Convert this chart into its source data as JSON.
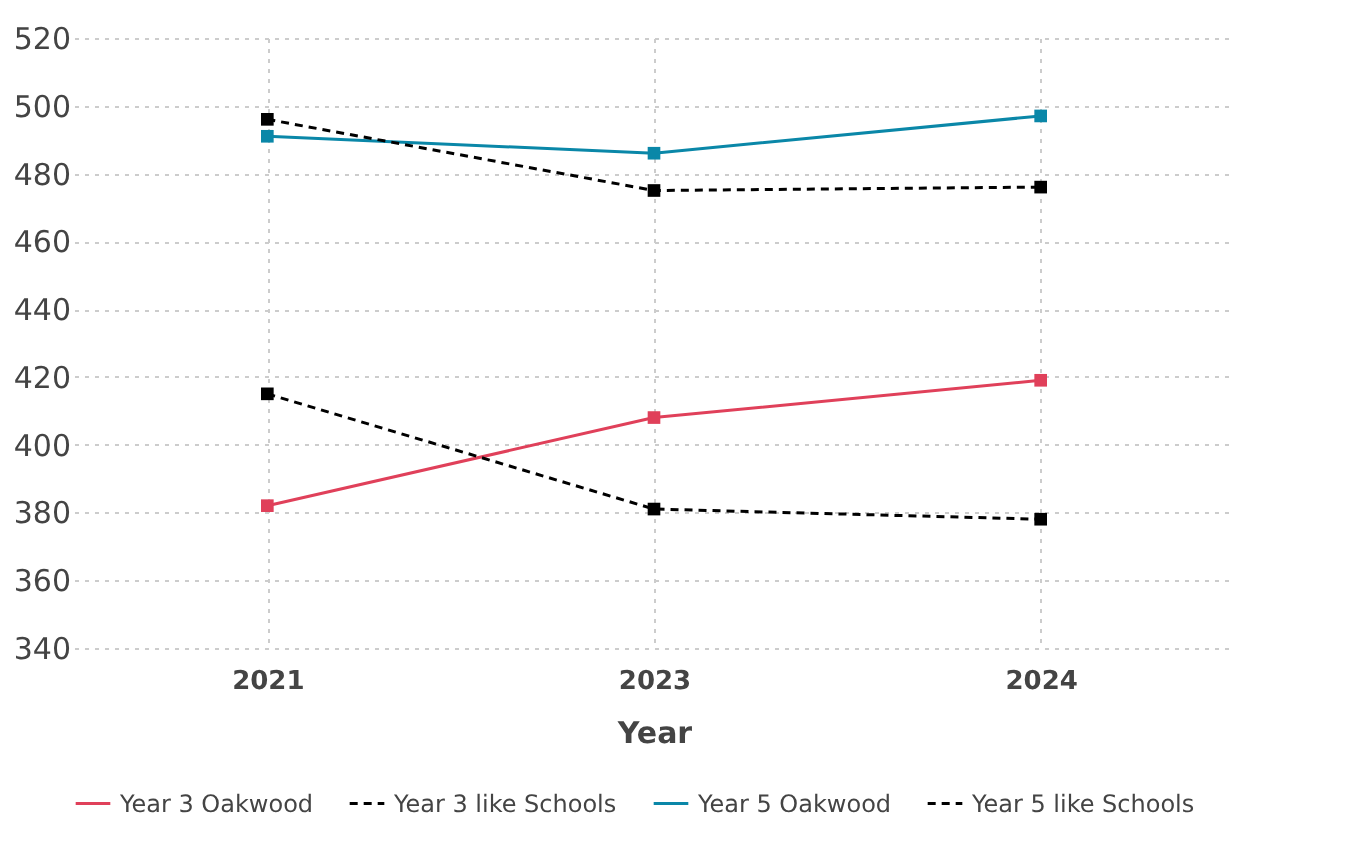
{
  "chart_data": {
    "type": "line",
    "xlabel": "Year",
    "categories": [
      "2021",
      "2023",
      "2024"
    ],
    "series": [
      {
        "name": "Year 3 Oakwood",
        "color": "#e0405a",
        "values": [
          382,
          408,
          419
        ],
        "line_style": "solid"
      },
      {
        "name": "Year 3 like Schools",
        "color": "#000000",
        "values": [
          415,
          381,
          378
        ],
        "line_style": "dashed"
      },
      {
        "name": "Year 5 Oakwood",
        "color": "#0a87a8",
        "values": [
          491,
          486,
          497
        ],
        "line_style": "solid"
      },
      {
        "name": "Year 5 like Schools",
        "color": "#000000",
        "values": [
          496,
          475,
          476
        ],
        "line_style": "dashed"
      }
    ],
    "ylim": [
      340,
      520
    ],
    "yticks": [
      340,
      360,
      380,
      400,
      420,
      440,
      460,
      480,
      500,
      520
    ],
    "grid": true,
    "legend": "bottom",
    "marker": "square"
  }
}
